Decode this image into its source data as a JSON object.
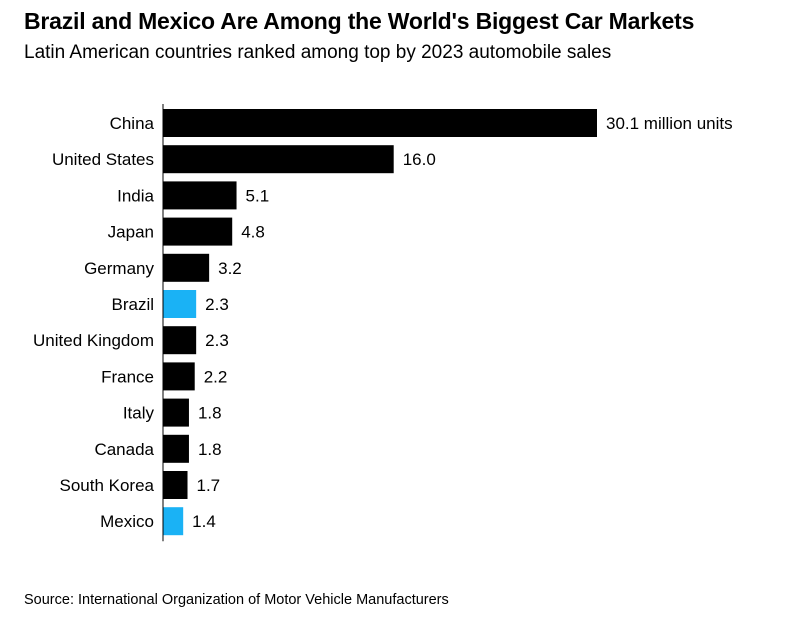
{
  "title": "Brazil and Mexico Are Among the World's Biggest Car Markets",
  "subtitle": "Latin American countries ranked among top by 2023 automobile sales",
  "source": "Source: International Organization of Motor Vehicle Manufacturers",
  "chart_data": {
    "type": "bar",
    "orientation": "horizontal",
    "categories": [
      "China",
      "United States",
      "India",
      "Japan",
      "Germany",
      "Brazil",
      "United Kingdom",
      "France",
      "Italy",
      "Canada",
      "South Korea",
      "Mexico"
    ],
    "values": [
      30.1,
      16.0,
      5.1,
      4.8,
      3.2,
      2.3,
      2.3,
      2.2,
      1.8,
      1.8,
      1.7,
      1.4
    ],
    "value_labels": [
      "30.1 million units",
      "16.0",
      "5.1",
      "4.8",
      "3.2",
      "2.3",
      "2.3",
      "2.2",
      "1.8",
      "1.8",
      "1.7",
      "1.4"
    ],
    "highlighted": [
      "Brazil",
      "Mexico"
    ],
    "colors": {
      "default": "#000000",
      "highlight": "#1ab2f5",
      "axis": "#000000"
    },
    "xlim": [
      0,
      30.1
    ],
    "grid": false,
    "legend": "none"
  }
}
